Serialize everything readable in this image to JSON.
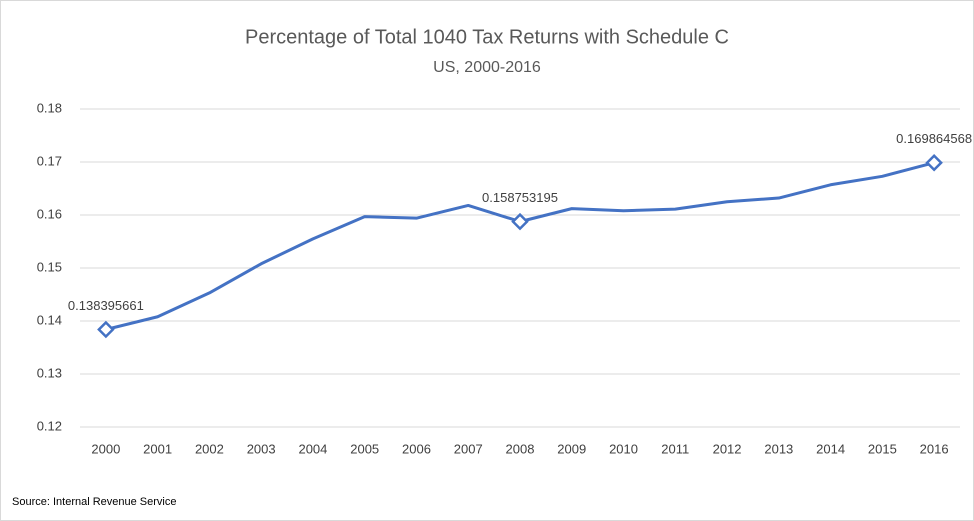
{
  "chart_data": {
    "type": "line",
    "title": "Percentage of Total 1040 Tax Returns with Schedule C",
    "subtitle": "US, 2000-2016",
    "source": "Source: Internal Revenue Service",
    "categories": [
      "2000",
      "2001",
      "2002",
      "2003",
      "2004",
      "2005",
      "2006",
      "2007",
      "2008",
      "2009",
      "2010",
      "2011",
      "2012",
      "2013",
      "2014",
      "2015",
      "2016"
    ],
    "values": [
      0.138395661,
      0.1408,
      0.1453,
      0.1508,
      0.1555,
      0.1597,
      0.1594,
      0.1618,
      0.158753195,
      0.1612,
      0.1608,
      0.1611,
      0.1625,
      0.1632,
      0.1657,
      0.1673,
      0.169864568
    ],
    "value_labels": [
      "0.138395661",
      null,
      null,
      null,
      null,
      null,
      null,
      null,
      "0.158753195",
      null,
      null,
      null,
      null,
      null,
      null,
      null,
      "0.169864568"
    ],
    "color": "#4472c4",
    "ylim": [
      0.12,
      0.18
    ],
    "yticks": [
      0.12,
      0.13,
      0.14,
      0.15,
      0.16,
      0.17,
      0.18
    ],
    "grid": true
  }
}
